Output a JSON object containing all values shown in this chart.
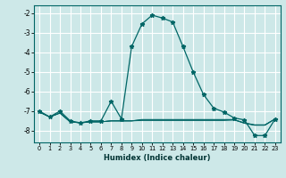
{
  "xlabel": "Humidex (Indice chaleur)",
  "xlim": [
    -0.5,
    23.5
  ],
  "ylim": [
    -8.6,
    -1.6
  ],
  "yticks": [
    -8,
    -7,
    -6,
    -5,
    -4,
    -3,
    -2
  ],
  "xticks": [
    0,
    1,
    2,
    3,
    4,
    5,
    6,
    7,
    8,
    9,
    10,
    11,
    12,
    13,
    14,
    15,
    16,
    17,
    18,
    19,
    20,
    21,
    22,
    23
  ],
  "bg_color": "#cde8e8",
  "grid_color": "#ffffff",
  "line_color": "#006666",
  "main_x": [
    0,
    1,
    2,
    3,
    4,
    5,
    6,
    7,
    8,
    9,
    10,
    11,
    12,
    13,
    14,
    15,
    16,
    17,
    18,
    19,
    20,
    21,
    22,
    23
  ],
  "main_y": [
    -7.0,
    -7.3,
    -7.0,
    -7.5,
    -7.6,
    -7.5,
    -7.5,
    -6.5,
    -7.4,
    -3.7,
    -2.55,
    -2.1,
    -2.25,
    -2.45,
    -3.7,
    -5.0,
    -6.15,
    -6.85,
    -7.05,
    -7.35,
    -7.45,
    -8.25,
    -8.25,
    -7.4
  ],
  "flat1_x": [
    0,
    1,
    2,
    3,
    4,
    5,
    6,
    7,
    8,
    9,
    10,
    11,
    12,
    13,
    14,
    15,
    16,
    17,
    18,
    19,
    20,
    21,
    22,
    23
  ],
  "flat1_y": [
    -7.05,
    -7.3,
    -7.1,
    -7.55,
    -7.6,
    -7.55,
    -7.55,
    -7.5,
    -7.5,
    -7.5,
    -7.48,
    -7.48,
    -7.48,
    -7.48,
    -7.48,
    -7.48,
    -7.48,
    -7.48,
    -7.48,
    -7.45,
    -7.6,
    -7.7,
    -7.7,
    -7.4
  ],
  "flat2_x": [
    0,
    1,
    2,
    3,
    4,
    5,
    6,
    7,
    8,
    9,
    10,
    11,
    12,
    13,
    14,
    15,
    16,
    17,
    18,
    19,
    20,
    21,
    22,
    23
  ],
  "flat2_y": [
    -7.05,
    -7.3,
    -7.1,
    -7.55,
    -7.6,
    -7.55,
    -7.55,
    -7.5,
    -7.5,
    -7.5,
    -7.45,
    -7.45,
    -7.45,
    -7.45,
    -7.45,
    -7.45,
    -7.45,
    -7.45,
    -7.45,
    -7.45,
    -7.62,
    -7.72,
    -7.72,
    -7.4
  ],
  "flat3_x": [
    0,
    1,
    2,
    3,
    4,
    5,
    6,
    7,
    8,
    9,
    10,
    11,
    12,
    13,
    14,
    15,
    16,
    17,
    18,
    19,
    20,
    21,
    22,
    23
  ],
  "flat3_y": [
    -7.05,
    -7.3,
    -7.1,
    -7.55,
    -7.6,
    -7.55,
    -7.55,
    -7.5,
    -7.5,
    -7.5,
    -7.43,
    -7.43,
    -7.43,
    -7.43,
    -7.43,
    -7.43,
    -7.43,
    -7.43,
    -7.43,
    -7.43,
    -7.62,
    -7.72,
    -7.72,
    -7.4
  ]
}
